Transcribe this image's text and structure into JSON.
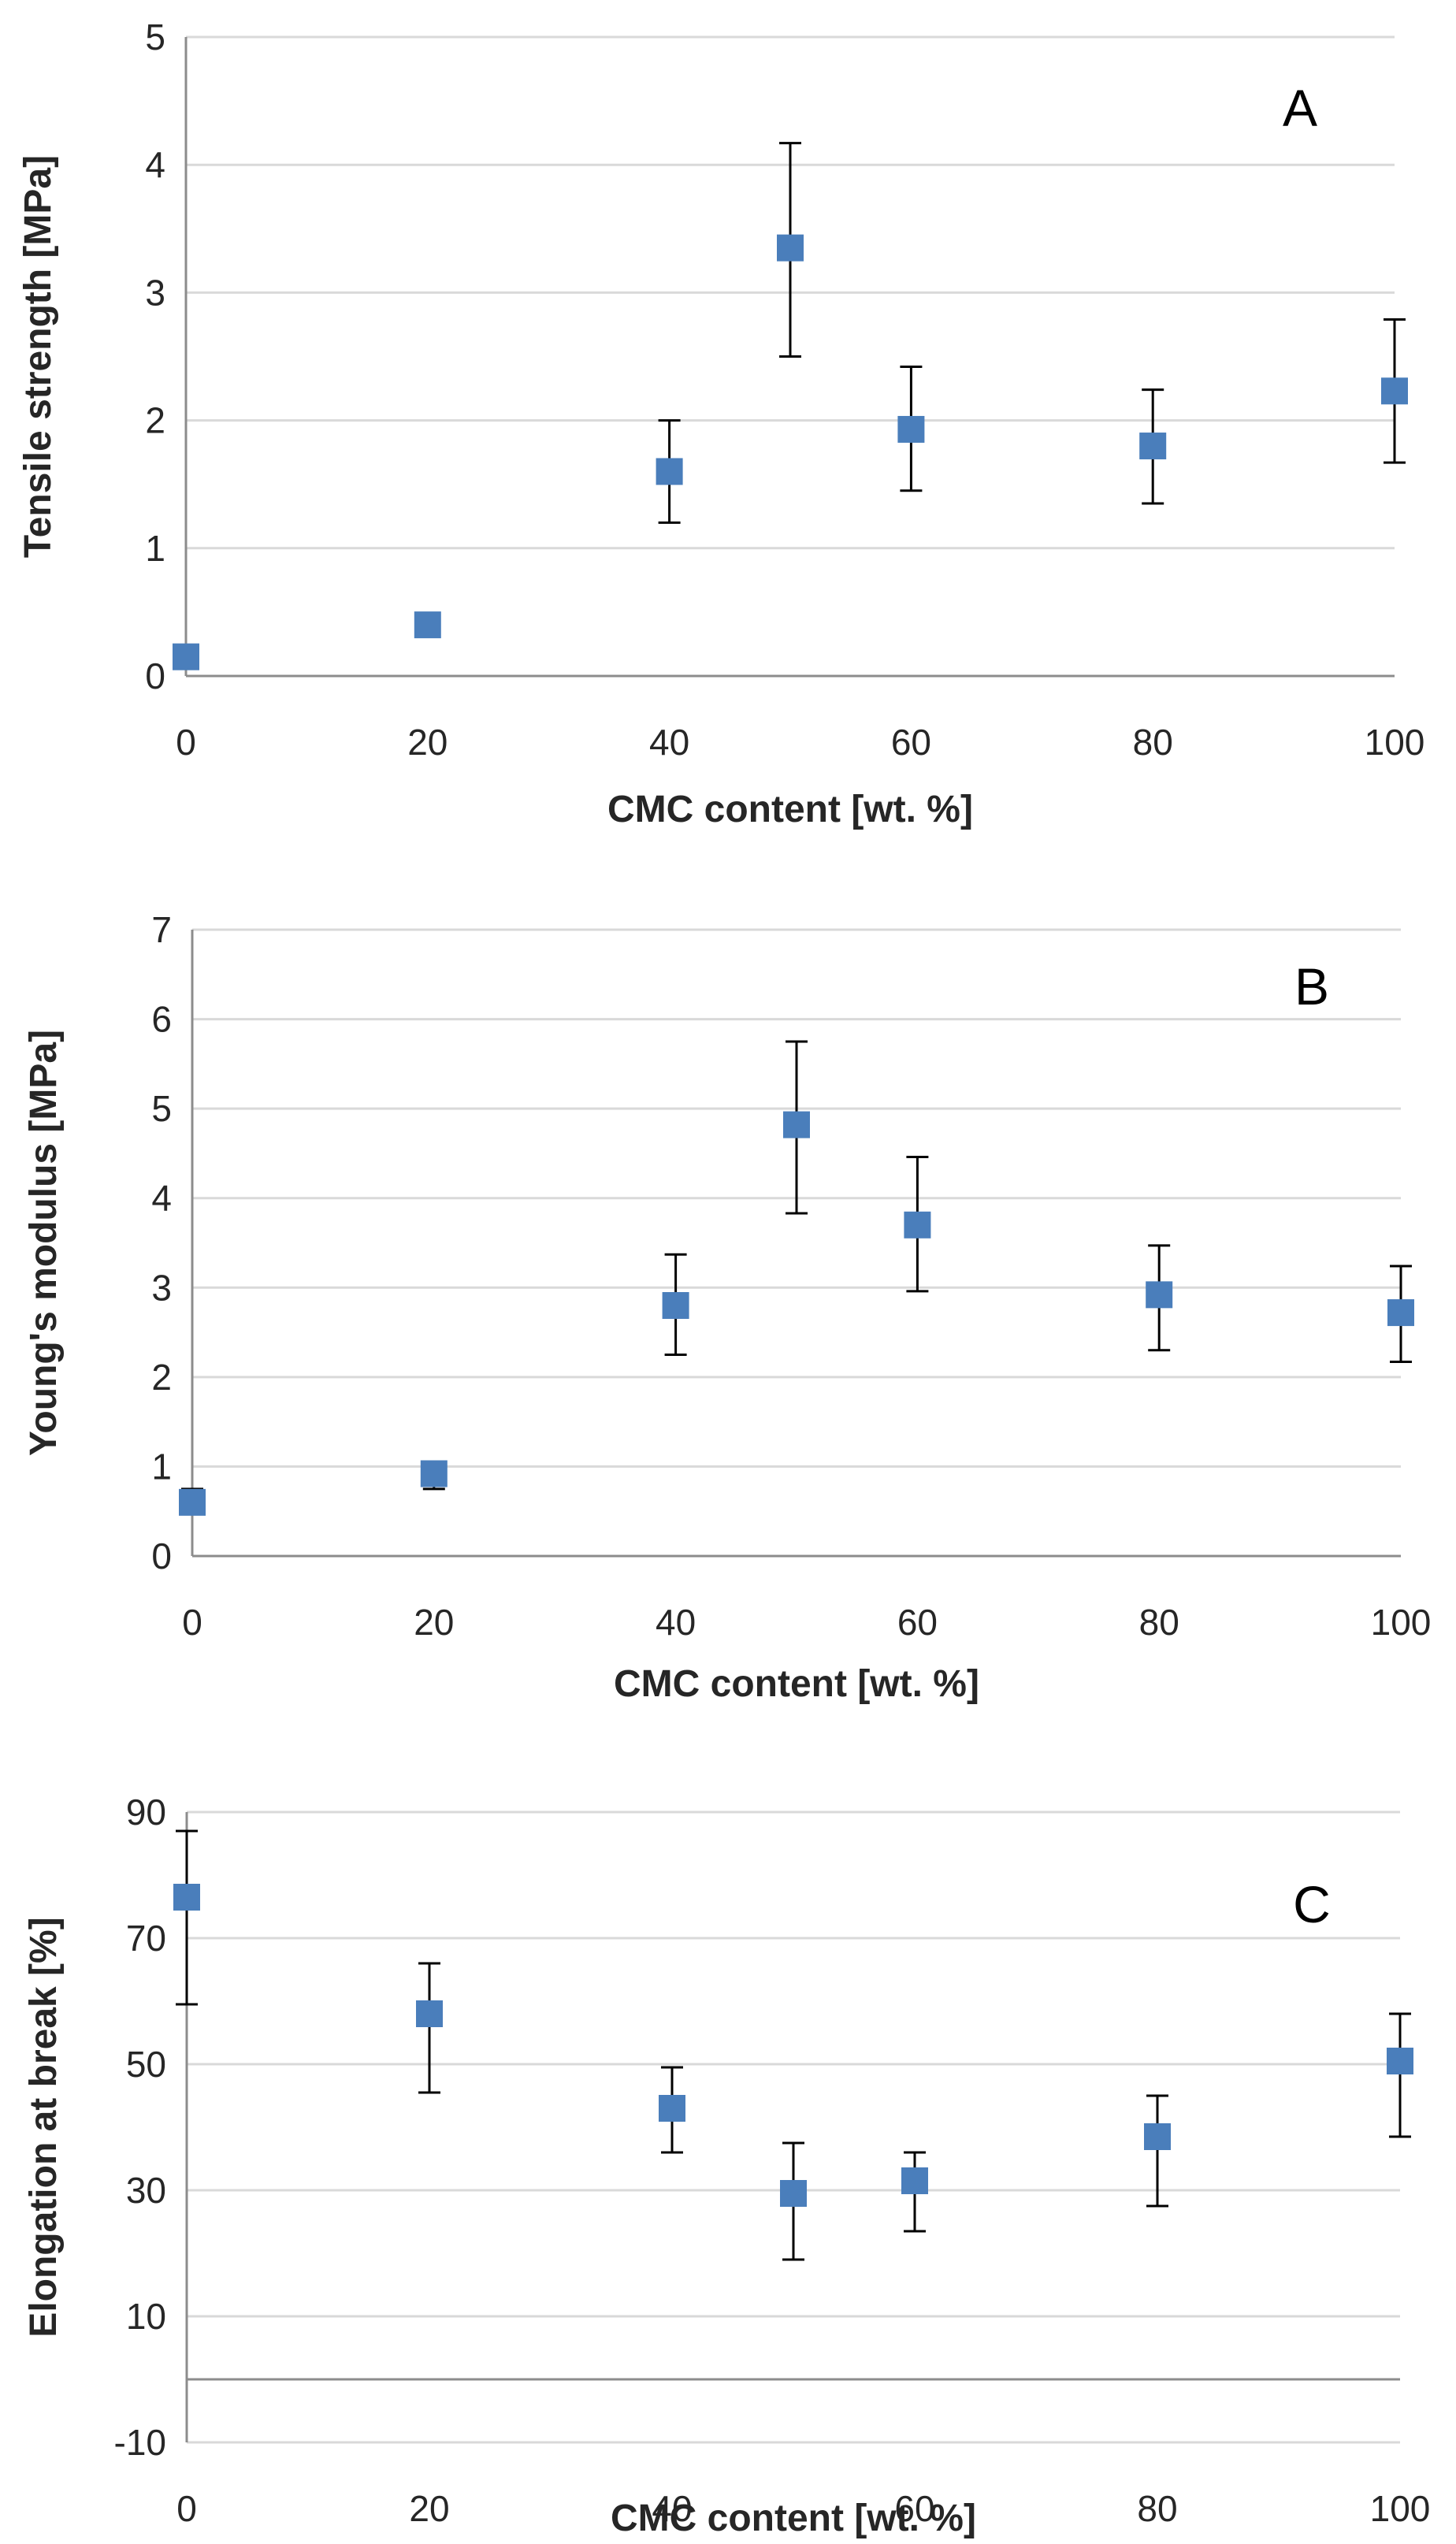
{
  "chart_data": [
    {
      "type": "scatter",
      "panel_label": "A",
      "xlabel": "CMC content [wt. %]",
      "ylabel": "Tensile strength [MPa]",
      "xlim": [
        0,
        100
      ],
      "ylim": [
        0,
        5
      ],
      "xticks": [
        0,
        20,
        40,
        60,
        80,
        100
      ],
      "yticks": [
        0,
        1,
        2,
        3,
        4,
        5
      ],
      "grid": true,
      "marker_color": "#4A7EBB",
      "series": [
        {
          "name": "Tensile strength",
          "x": [
            0,
            20,
            40,
            50,
            60,
            80,
            100
          ],
          "y": [
            0.15,
            0.4,
            1.6,
            3.35,
            1.93,
            1.8,
            2.23
          ],
          "err_low": [
            0.12,
            0.32,
            1.2,
            2.5,
            1.45,
            1.35,
            1.67
          ],
          "err_high": [
            0.18,
            0.45,
            2.0,
            4.17,
            2.42,
            2.24,
            2.79
          ]
        }
      ]
    },
    {
      "type": "scatter",
      "panel_label": "B",
      "xlabel": "CMC content [wt. %]",
      "ylabel": "Young's modulus [MPa]",
      "xlim": [
        0,
        100
      ],
      "ylim": [
        0,
        7
      ],
      "xticks": [
        0,
        20,
        40,
        60,
        80,
        100
      ],
      "yticks": [
        0,
        1,
        2,
        3,
        4,
        5,
        6,
        7
      ],
      "grid": true,
      "marker_color": "#4A7EBB",
      "series": [
        {
          "name": "Young's modulus",
          "x": [
            0,
            20,
            40,
            50,
            60,
            80,
            100
          ],
          "y": [
            0.6,
            0.92,
            2.8,
            4.82,
            3.7,
            2.92,
            2.72
          ],
          "err_low": [
            0.5,
            0.75,
            2.25,
            3.83,
            2.96,
            2.3,
            2.17
          ],
          "err_high": [
            0.75,
            1.0,
            3.37,
            5.75,
            4.46,
            3.47,
            3.24
          ]
        }
      ]
    },
    {
      "type": "scatter",
      "panel_label": "C",
      "xlabel": "CMC content [wt. %]",
      "ylabel": "Elongation at break [%]",
      "xlim": [
        0,
        100
      ],
      "ylim": [
        -10,
        90
      ],
      "xticks": [
        0,
        20,
        40,
        60,
        80,
        100
      ],
      "yticks": [
        -10,
        10,
        30,
        50,
        70,
        90
      ],
      "grid": true,
      "marker_color": "#4A7EBB",
      "series": [
        {
          "name": "Elongation at break",
          "x": [
            0,
            20,
            40,
            50,
            60,
            80,
            100
          ],
          "y": [
            76.5,
            58,
            43,
            29.5,
            31.5,
            38.5,
            50.5
          ],
          "err_low": [
            59.5,
            45.5,
            36,
            19,
            23.5,
            27.5,
            38.5
          ],
          "err_high": [
            87,
            66,
            49.5,
            37.5,
            36,
            45,
            58
          ]
        }
      ]
    }
  ]
}
